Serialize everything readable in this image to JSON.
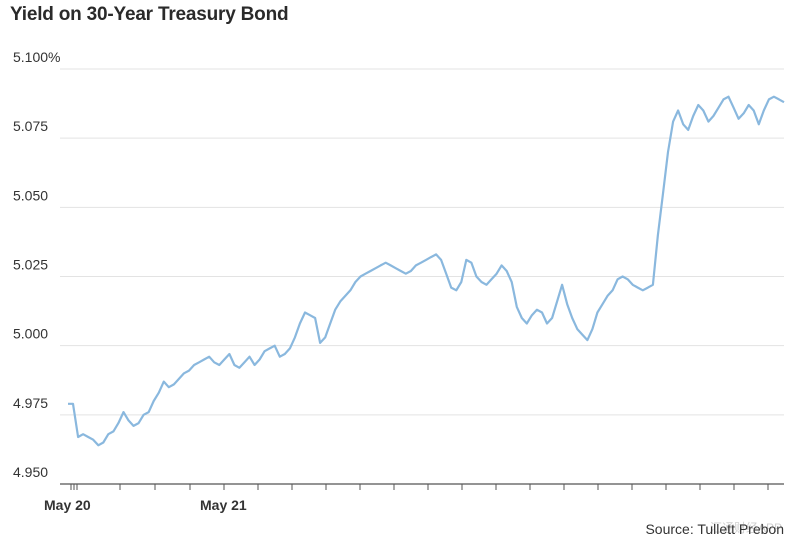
{
  "chart_data": {
    "type": "line",
    "title": "Yield on 30-Year Treasury Bond",
    "xlabel": "",
    "ylabel": "",
    "source": "Source: Tullett Prebon",
    "ylim": [
      4.95,
      5.1
    ],
    "y_ticks": [
      "5.100%",
      "5.075",
      "5.050",
      "5.025",
      "5.000",
      "4.975",
      "4.950"
    ],
    "y_tick_values": [
      5.1,
      5.075,
      5.05,
      5.025,
      5.0,
      4.975,
      4.95
    ],
    "x_ticks": [
      "May 20",
      "May 21"
    ],
    "grid": true,
    "line_color": "#8ab8de",
    "series": [
      {
        "values": [
          4.979,
          4.979,
          4.967,
          4.968,
          4.967,
          4.966,
          4.964,
          4.965,
          4.968,
          4.969,
          4.972,
          4.976,
          4.973,
          4.971,
          4.972,
          4.975,
          4.976,
          4.98,
          4.983,
          4.987,
          4.985,
          4.986,
          4.988,
          4.99,
          4.991,
          4.993,
          4.994,
          4.995,
          4.996,
          4.994,
          4.993,
          4.995,
          4.997,
          4.993,
          4.992,
          4.994,
          4.996,
          4.993,
          4.995,
          4.998,
          4.999,
          5.0,
          4.996,
          4.997,
          4.999,
          5.003,
          5.008,
          5.012,
          5.011,
          5.01,
          5.001,
          5.003,
          5.008,
          5.013,
          5.016,
          5.018,
          5.02,
          5.023,
          5.025,
          5.026,
          5.027,
          5.028,
          5.029,
          5.03,
          5.029,
          5.028,
          5.027,
          5.026,
          5.027,
          5.029,
          5.03,
          5.031,
          5.032,
          5.033,
          5.031,
          5.026,
          5.021,
          5.02,
          5.023,
          5.031,
          5.03,
          5.025,
          5.023,
          5.022,
          5.024,
          5.026,
          5.029,
          5.027,
          5.023,
          5.014,
          5.01,
          5.008,
          5.011,
          5.013,
          5.012,
          5.008,
          5.01,
          5.016,
          5.022,
          5.015,
          5.01,
          5.006,
          5.004,
          5.002,
          5.006,
          5.012,
          5.015,
          5.018,
          5.02,
          5.024,
          5.025,
          5.024,
          5.022,
          5.021,
          5.02,
          5.021,
          5.022,
          5.04,
          5.055,
          5.07,
          5.081,
          5.085,
          5.08,
          5.078,
          5.083,
          5.087,
          5.085,
          5.081,
          5.083,
          5.086,
          5.089,
          5.09,
          5.086,
          5.082,
          5.084,
          5.087,
          5.085,
          5.08,
          5.085,
          5.089,
          5.09,
          5.089,
          5.088
        ]
      }
    ]
  },
  "watermark": "汇通财经APP"
}
